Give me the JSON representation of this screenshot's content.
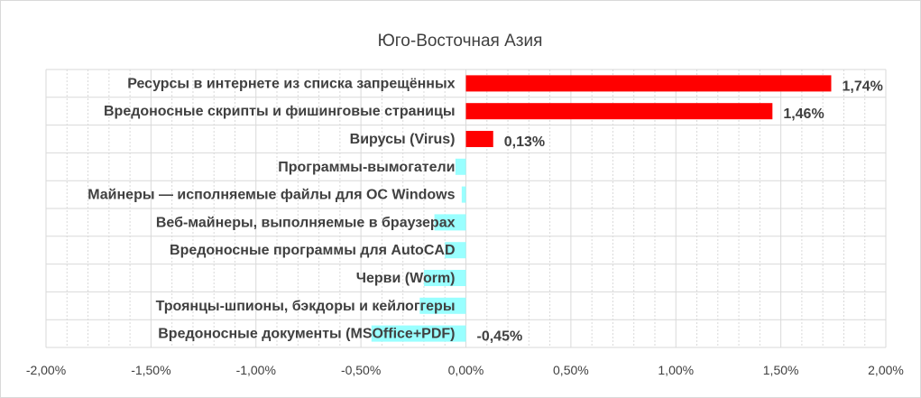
{
  "chart_data": {
    "type": "bar",
    "orientation": "horizontal",
    "title": "Юго-Восточная Азия",
    "categories": [
      "Ресурсы в интернете из списка запрещённых",
      "Вредоносные скрипты и фишинговые страницы",
      "Вирусы (Virus)",
      "Программы-вымогатели",
      "Майнеры — исполняемые файлы для ОС Windows",
      "Веб-майнеры, выполняемые в браузерах",
      "Вредоносные программы для AutoCAD",
      "Черви (Worm)",
      "Троянцы-шпионы, бэкдоры и кейлоггеры",
      "Вредоносные документы (MSOffice+PDF)"
    ],
    "values": [
      1.74,
      1.46,
      0.13,
      -0.05,
      -0.02,
      -0.15,
      -0.1,
      -0.2,
      -0.22,
      -0.45
    ],
    "data_labels": [
      "1,74%",
      "1,46%",
      "0,13%",
      "",
      "",
      "",
      "",
      "",
      "",
      "-0,45%"
    ],
    "x_ticks": [
      "-2,00%",
      "-1,50%",
      "-1,00%",
      "-0,50%",
      "0,00%",
      "0,50%",
      "1,00%",
      "1,50%",
      "2,00%"
    ],
    "xlim": [
      -2.0,
      2.0
    ],
    "gridlines": true,
    "colors": {
      "positive": "#ff0000",
      "negative": "#99ffff",
      "grid": "#d9d9d9",
      "text": "#404040"
    }
  }
}
